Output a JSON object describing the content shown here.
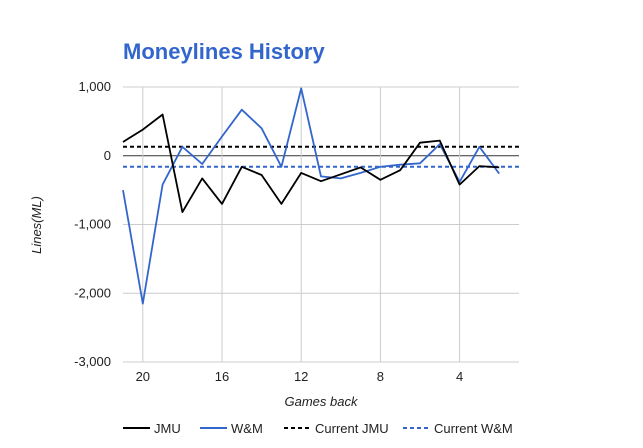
{
  "chart_data": {
    "type": "line",
    "title": "Moneylines History",
    "xlabel": "Games back",
    "ylabel": "Lines(ML)",
    "x": [
      21,
      20,
      19,
      18,
      17,
      16,
      15,
      14,
      13,
      12,
      11,
      10,
      9,
      8,
      7,
      6,
      5,
      4,
      3,
      2,
      1
    ],
    "xlim": [
      21,
      1
    ],
    "ylim": [
      -3000,
      1000
    ],
    "x_ticks": [
      20,
      16,
      12,
      8,
      4
    ],
    "x_tick_labels": [
      "20",
      "16",
      "12",
      "8",
      "4"
    ],
    "y_ticks": [
      1000,
      0,
      -1000,
      -2000,
      -3000
    ],
    "y_tick_labels": [
      "1,000",
      "0",
      "-1,000",
      "-2,000",
      "-3,000"
    ],
    "grid": true,
    "legend_position": "bottom",
    "series": [
      {
        "name": "JMU",
        "style": "solid",
        "color": "#000000",
        "values": [
          200,
          380,
          600,
          -820,
          -330,
          -700,
          -160,
          -280,
          -700,
          -250,
          -370,
          -270,
          -170,
          -350,
          -210,
          190,
          220,
          -420,
          -150,
          -170,
          null
        ]
      },
      {
        "name": "W&M",
        "style": "solid",
        "color": "#3366cc",
        "values": [
          -500,
          -2150,
          -420,
          130,
          -120,
          280,
          670,
          400,
          -160,
          980,
          -300,
          -330,
          -250,
          -160,
          -130,
          -110,
          170,
          -380,
          130,
          -260,
          null
        ]
      },
      {
        "name": "Current JMU",
        "style": "dashed",
        "color": "#000000",
        "values": [
          130,
          130,
          130,
          130,
          130,
          130,
          130,
          130,
          130,
          130,
          130,
          130,
          130,
          130,
          130,
          130,
          130,
          130,
          130,
          130,
          130
        ]
      },
      {
        "name": "Current W&M",
        "style": "dashed",
        "color": "#3366cc",
        "values": [
          -160,
          -160,
          -160,
          -160,
          -160,
          -160,
          -160,
          -160,
          -160,
          -160,
          -160,
          -160,
          -160,
          -160,
          -160,
          -160,
          -160,
          -160,
          -160,
          -160,
          -160
        ]
      }
    ],
    "colors": {
      "title": "#3366cc",
      "grid": "#cccccc",
      "zero_line": "#333333"
    }
  }
}
